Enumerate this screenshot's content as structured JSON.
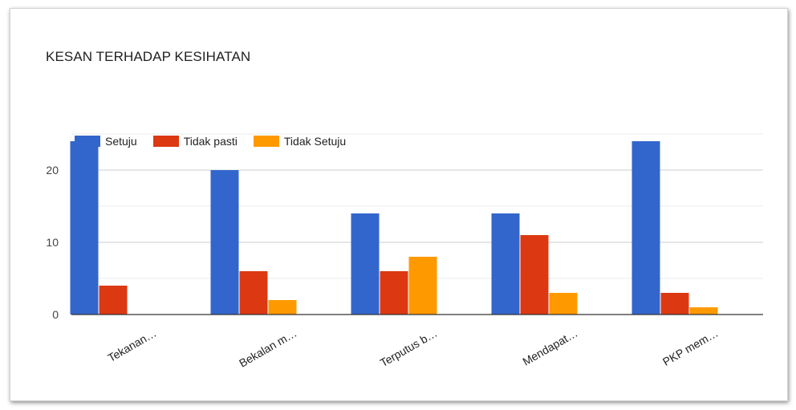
{
  "chart_data": {
    "type": "bar",
    "title": "KESAN TERHADAP KESIHATAN",
    "categories": [
      "Tekanan…",
      "Bekalan m…",
      "Terputus b…",
      "Mendapat…",
      "PKP mem…"
    ],
    "series": [
      {
        "name": "Setuju",
        "values": [
          24,
          20,
          14,
          14,
          24
        ],
        "color": "#3366cc"
      },
      {
        "name": "Tidak pasti",
        "values": [
          4,
          6,
          6,
          11,
          3
        ],
        "color": "#dc3912"
      },
      {
        "name": "Tidak Setuju",
        "values": [
          0,
          2,
          8,
          3,
          1
        ],
        "color": "#ff9900"
      }
    ],
    "ylim": [
      0,
      25
    ],
    "yticks": [
      0,
      10,
      20
    ],
    "minor_gridlines": [
      5,
      15,
      25
    ],
    "xlabel": "",
    "ylabel": "",
    "legend_position": "top-left",
    "grid": true
  }
}
